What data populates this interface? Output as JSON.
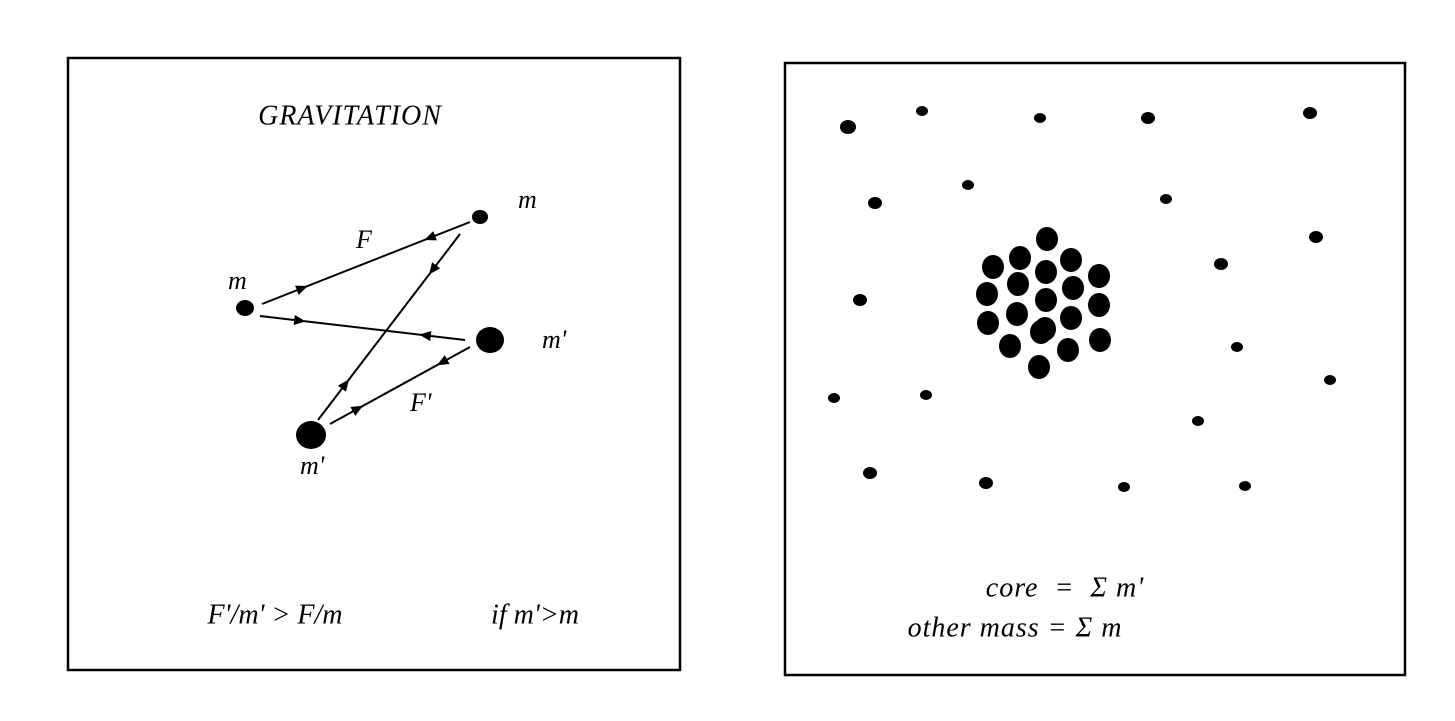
{
  "left_panel": {
    "title": "GRAVITATION",
    "labels": [
      "m",
      "m",
      "F",
      "m'",
      "m'",
      "F'"
    ],
    "formula": "F'/m' > F/m",
    "condition": "if m'>m"
  },
  "right_panel": {
    "core_equation": "core  =  Σ m'",
    "other_equation": "other mass = Σ m"
  }
}
